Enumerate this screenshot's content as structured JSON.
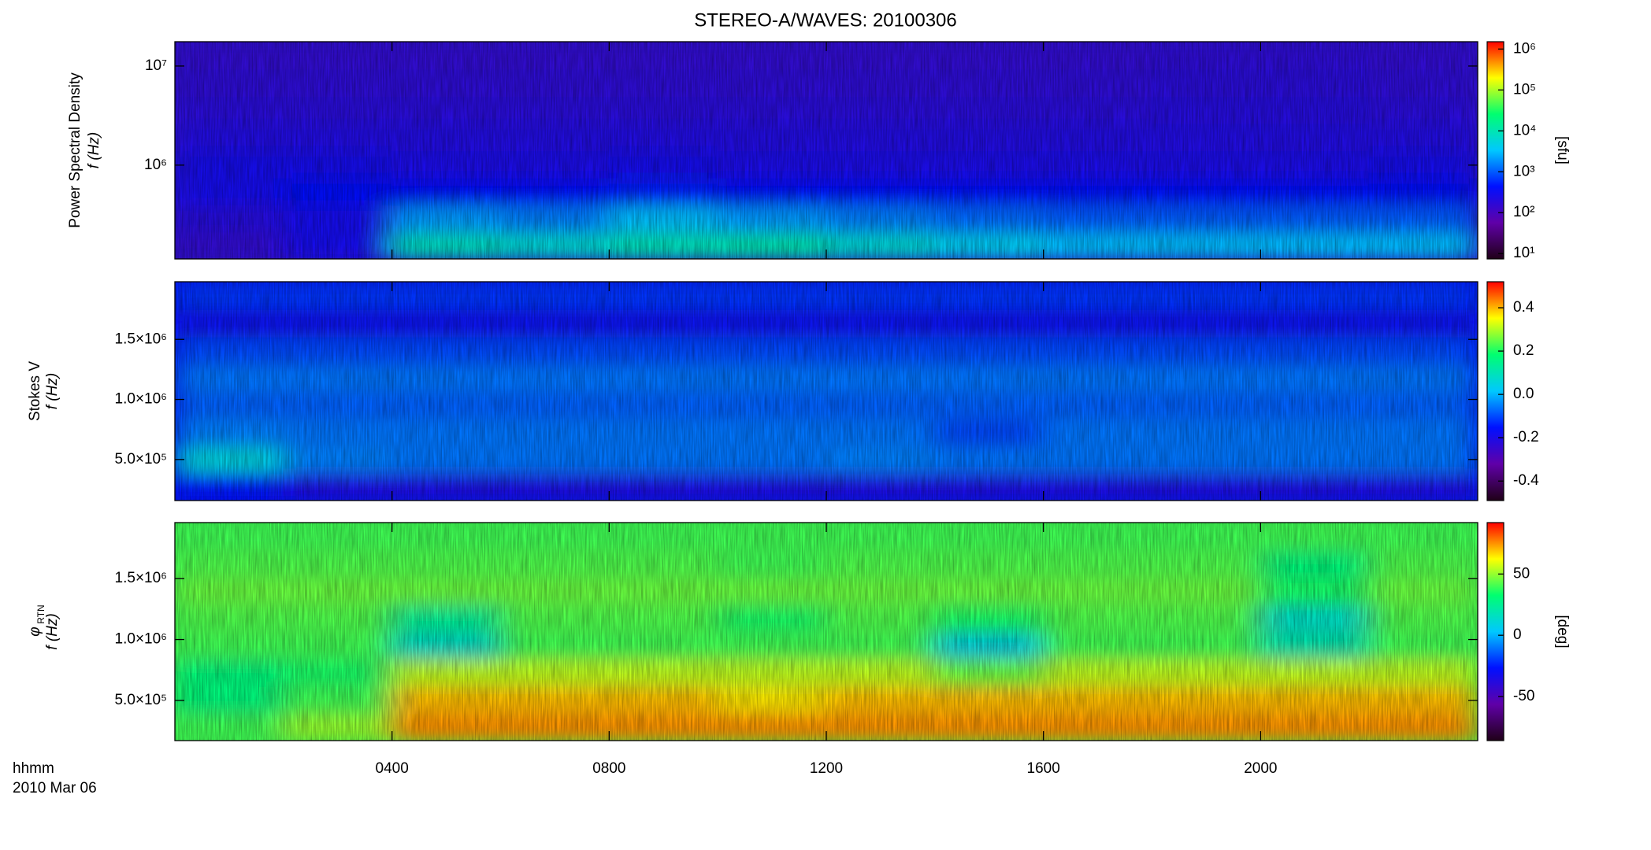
{
  "chart_data": [
    {
      "type": "heatmap",
      "title": "STEREO-A/WAVES: 20100306",
      "ylabel": [
        "Power Spectral Density",
        "f (Hz)"
      ],
      "yscale": "log",
      "ylim": [
        113000,
        17600000
      ],
      "yticks": [
        {
          "value": 1000000,
          "label": "10⁶"
        },
        {
          "value": 10000000,
          "label": "10⁷"
        }
      ],
      "xlim": [
        0,
        24
      ],
      "x": [
        1,
        3,
        5,
        7,
        9,
        11,
        13,
        15,
        17,
        19,
        21,
        23
      ],
      "y": [
        155000,
        291000,
        547000,
        1030000,
        1930000,
        3630000,
        6820000,
        12800000
      ],
      "z": [
        [
          150,
          300,
          8000,
          6000,
          9000,
          10000,
          6000,
          4000,
          3000,
          3000,
          3000,
          3000
        ],
        [
          200,
          300,
          2000,
          1500,
          3000,
          2000,
          1500,
          1200,
          1000,
          1000,
          1000,
          1000
        ],
        [
          300,
          400,
          400,
          400,
          500,
          400,
          400,
          400,
          400,
          400,
          400,
          400
        ],
        [
          260,
          260,
          250,
          250,
          260,
          250,
          250,
          250,
          250,
          250,
          250,
          260
        ],
        [
          220,
          220,
          210,
          210,
          220,
          210,
          210,
          210,
          210,
          220,
          220,
          220
        ],
        [
          180,
          180,
          180,
          180,
          180,
          180,
          180,
          180,
          180,
          190,
          190,
          180
        ],
        [
          160,
          160,
          160,
          160,
          160,
          160,
          160,
          160,
          160,
          170,
          170,
          160
        ],
        [
          150,
          150,
          150,
          150,
          150,
          150,
          150,
          150,
          150,
          160,
          160,
          150
        ]
      ],
      "zscale": "log",
      "zlim": [
        7.4,
        1510000
      ],
      "zticks": [
        {
          "value": 10,
          "label": "10¹"
        },
        {
          "value": 100,
          "label": "10²"
        },
        {
          "value": 1000,
          "label": "10³"
        },
        {
          "value": 10000,
          "label": "10⁴"
        },
        {
          "value": 100000,
          "label": "10⁵"
        },
        {
          "value": 1000000,
          "label": "10⁶"
        }
      ],
      "zlabel": "[sfu]",
      "colorscale": [
        "#200018",
        "#6000a8",
        "#0010ff",
        "#00c8ff",
        "#00ff70",
        "#ffff00",
        "#ff0000"
      ]
    },
    {
      "type": "heatmap",
      "ylabel": [
        "Stokes V",
        "f (Hz)"
      ],
      "yscale": "linear",
      "ylim": [
        158000,
        1980000
      ],
      "yticks": [
        {
          "value": 500000,
          "label": "5.0×10⁵"
        },
        {
          "value": 1000000,
          "label": "1.0×10⁶"
        },
        {
          "value": 1500000,
          "label": "1.5×10⁶"
        }
      ],
      "xlim": [
        0,
        24
      ],
      "x": [
        1,
        3,
        5,
        7,
        9,
        11,
        13,
        15,
        17,
        19,
        21,
        23
      ],
      "y": [
        272000,
        500000,
        727000,
        955000,
        1183000,
        1411000,
        1638000,
        1866000
      ],
      "z": [
        [
          -0.15,
          -0.2,
          -0.2,
          -0.2,
          -0.2,
          -0.2,
          -0.2,
          -0.2,
          -0.2,
          -0.2,
          -0.2,
          -0.2
        ],
        [
          0.05,
          -0.05,
          -0.06,
          -0.06,
          -0.06,
          -0.06,
          -0.05,
          -0.06,
          -0.06,
          -0.06,
          -0.06,
          -0.06
        ],
        [
          -0.05,
          -0.06,
          -0.06,
          -0.06,
          -0.06,
          -0.06,
          -0.06,
          -0.1,
          -0.06,
          -0.06,
          -0.06,
          -0.06
        ],
        [
          -0.08,
          -0.08,
          -0.08,
          -0.08,
          -0.08,
          -0.08,
          -0.08,
          -0.08,
          -0.08,
          -0.08,
          -0.08,
          -0.08
        ],
        [
          -0.06,
          -0.06,
          -0.06,
          -0.06,
          -0.06,
          -0.06,
          -0.06,
          -0.06,
          -0.06,
          -0.06,
          -0.06,
          -0.06
        ],
        [
          -0.1,
          -0.1,
          -0.1,
          -0.1,
          -0.1,
          -0.1,
          -0.1,
          -0.1,
          -0.1,
          -0.1,
          -0.1,
          -0.1
        ],
        [
          -0.18,
          -0.18,
          -0.18,
          -0.18,
          -0.18,
          -0.18,
          -0.18,
          -0.18,
          -0.18,
          -0.18,
          -0.18,
          -0.18
        ],
        [
          -0.12,
          -0.12,
          -0.12,
          -0.12,
          -0.12,
          -0.12,
          -0.12,
          -0.12,
          -0.12,
          -0.12,
          -0.12,
          -0.12
        ]
      ],
      "zscale": "linear",
      "zlim": [
        -0.49,
        0.52
      ],
      "zticks": [
        -0.4,
        -0.2,
        {
          "value": 0,
          "label": "0.0"
        },
        0.2,
        0.4
      ],
      "colorscale": [
        "#200018",
        "#6000a8",
        "#0010ff",
        "#00c8ff",
        "#00ff70",
        "#ffff00",
        "#ff0000"
      ]
    },
    {
      "type": "heatmap",
      "ylabel": [
        "φ",
        "f (Hz)"
      ],
      "ylabel_subscript": "RTN",
      "yscale": "linear",
      "ylim": [
        170000,
        1960000
      ],
      "yticks": [
        {
          "value": 500000,
          "label": "5.0×10⁵"
        },
        {
          "value": 1000000,
          "label": "1.0×10⁶"
        },
        {
          "value": 1500000,
          "label": "1.5×10⁶"
        }
      ],
      "xlim": [
        0,
        24
      ],
      "xticks": [
        {
          "value": 4,
          "label": "0400"
        },
        {
          "value": 8,
          "label": "0800"
        },
        {
          "value": 12,
          "label": "1200"
        },
        {
          "value": 16,
          "label": "1600"
        },
        {
          "value": 20,
          "label": "2000"
        }
      ],
      "xlabel": [
        "hhmm",
        "2010 Mar 06"
      ],
      "x": [
        1,
        3,
        5,
        7,
        9,
        11,
        13,
        15,
        17,
        19,
        21,
        23
      ],
      "y": [
        282000,
        506000,
        729000,
        953000,
        1177000,
        1401000,
        1624000,
        1848000
      ],
      "z": [
        [
          40,
          50,
          75,
          75,
          75,
          75,
          75,
          75,
          75,
          75,
          75,
          75
        ],
        [
          30,
          40,
          70,
          70,
          70,
          65,
          70,
          70,
          70,
          70,
          70,
          70
        ],
        [
          30,
          35,
          55,
          55,
          55,
          55,
          55,
          45,
          55,
          55,
          55,
          55
        ],
        [
          40,
          40,
          15,
          40,
          40,
          40,
          40,
          10,
          40,
          40,
          20,
          40
        ],
        [
          42,
          42,
          25,
          42,
          42,
          35,
          42,
          35,
          42,
          42,
          15,
          42
        ],
        [
          45,
          45,
          45,
          45,
          45,
          45,
          45,
          45,
          45,
          45,
          35,
          45
        ],
        [
          42,
          42,
          42,
          42,
          42,
          40,
          42,
          42,
          42,
          42,
          30,
          42
        ],
        [
          40,
          40,
          40,
          40,
          40,
          40,
          40,
          40,
          40,
          40,
          40,
          40
        ]
      ],
      "zscale": "linear",
      "zlim": [
        -86,
        92
      ],
      "zticks": [
        -50,
        0,
        50
      ],
      "zlabel": "[deg]",
      "colorscale": [
        "#200018",
        "#6000a8",
        "#0010ff",
        "#00c8ff",
        "#00ff70",
        "#ffff00",
        "#ff0000"
      ]
    }
  ]
}
